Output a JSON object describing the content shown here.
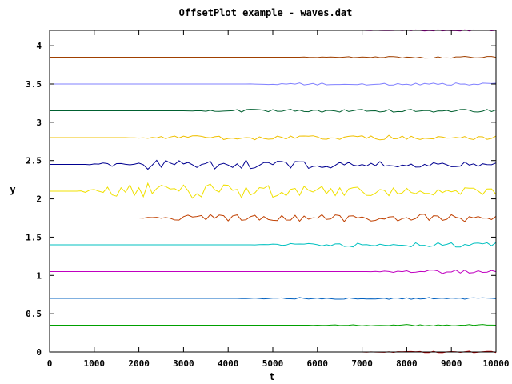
{
  "chart_data": {
    "type": "line",
    "title": "OffsetPlot example - waves.dat",
    "xlabel": "t",
    "ylabel": "y",
    "xlim": [
      0,
      10000
    ],
    "ylim": [
      0,
      4.2
    ],
    "grid": false,
    "legend": "none",
    "x_ticks": [
      "0",
      "1000",
      "2000",
      "3000",
      "4000",
      "5000",
      "6000",
      "7000",
      "8000",
      "9000",
      "10000"
    ],
    "y_ticks": [
      "0",
      "0.5",
      "1",
      "1.5",
      "2",
      "2.5",
      "3",
      "3.5",
      "4"
    ],
    "series": [
      {
        "offset": 0.0,
        "color": "#c00000",
        "start": 6800,
        "amp": 0.012
      },
      {
        "offset": 0.35,
        "color": "#00a000",
        "start": 5600,
        "amp": 0.01
      },
      {
        "offset": 0.7,
        "color": "#0060c0",
        "start": 4000,
        "amp": 0.012
      },
      {
        "offset": 1.05,
        "color": "#c000c0",
        "start": 7000,
        "amp": 0.025
      },
      {
        "offset": 1.4,
        "color": "#00c0c0",
        "start": 4500,
        "amp": 0.03
      },
      {
        "offset": 1.75,
        "color": "#c04000",
        "start": 1900,
        "amp": 0.05
      },
      {
        "offset": 2.1,
        "color": "#f0e000",
        "start": 600,
        "amp": 0.12
      },
      {
        "offset": 2.45,
        "color": "#000090",
        "start": 800,
        "amp": 0.08
      },
      {
        "offset": 2.8,
        "color": "#f0c000",
        "start": 1700,
        "amp": 0.03
      },
      {
        "offset": 3.15,
        "color": "#006030",
        "start": 3000,
        "amp": 0.02
      },
      {
        "offset": 3.5,
        "color": "#8080ff",
        "start": 4200,
        "amp": 0.015
      },
      {
        "offset": 3.85,
        "color": "#a04000",
        "start": 5400,
        "amp": 0.012
      },
      {
        "offset": 4.2,
        "color": "#c000c0",
        "start": 6600,
        "amp": 0.008
      }
    ]
  }
}
